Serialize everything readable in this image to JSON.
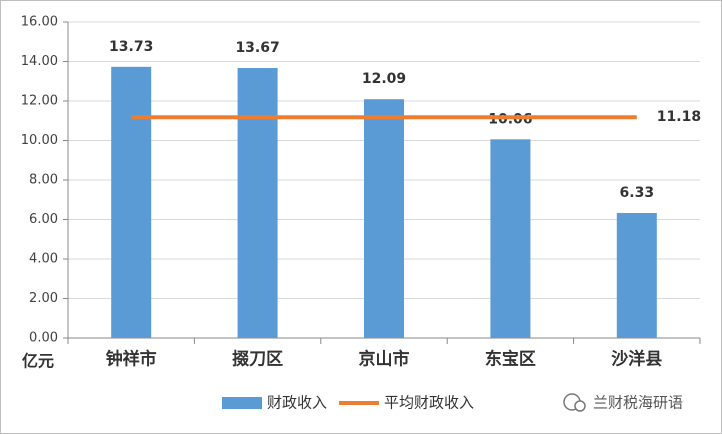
{
  "chart_data": {
    "type": "bar",
    "y_unit": "亿元",
    "categories": [
      "钟祥市",
      "掇刀区",
      "京山市",
      "东宝区",
      "沙洋县"
    ],
    "series": [
      {
        "name": "财政收入",
        "type": "bar",
        "color": "#5b9bd5",
        "values": [
          13.73,
          13.67,
          12.09,
          10.06,
          6.33
        ]
      },
      {
        "name": "平均财政收入",
        "type": "line",
        "color": "#ed7d31",
        "values": [
          11.18,
          11.18,
          11.18,
          11.18,
          11.18
        ]
      }
    ],
    "ylim": [
      0,
      16
    ],
    "yticks": [
      {
        "value": 0,
        "label": "0.00"
      },
      {
        "value": 2,
        "label": "2.00"
      },
      {
        "value": 4,
        "label": "4.00"
      },
      {
        "value": 6,
        "label": "6.00"
      },
      {
        "value": 8,
        "label": "8.00"
      },
      {
        "value": 10,
        "label": "10.00"
      },
      {
        "value": 12,
        "label": "12.00"
      },
      {
        "value": 14,
        "label": "14.00"
      },
      {
        "value": 16,
        "label": "16.00"
      }
    ],
    "grid": true,
    "legend": "bottom"
  },
  "watermark": "兰财税海研语"
}
